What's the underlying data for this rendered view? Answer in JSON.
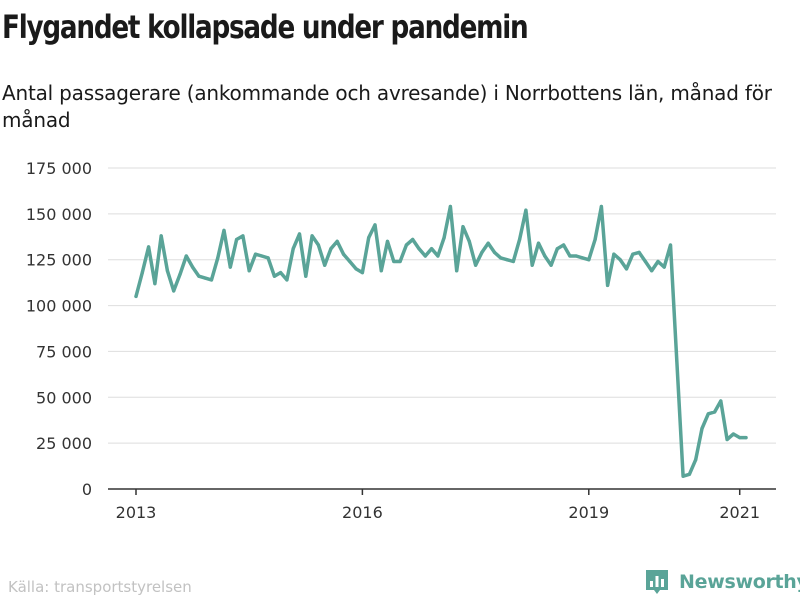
{
  "header": {
    "title": "Flygandet kollapsade under pandemin",
    "subtitle": "Antal passagerare (ankommande och avresande) i Norrbottens län, månad för månad"
  },
  "footer": {
    "source": "Källa: transportstyrelsen",
    "brand": "Newsworthy",
    "brand_icon": "bar-chart-logo-icon"
  },
  "colors": {
    "line": "#5aa498",
    "grid": "#dedede",
    "axis": "#333333",
    "source_text": "#c2c2c2"
  },
  "chart_data": {
    "type": "line",
    "title": "Flygandet kollapsade under pandemin",
    "subtitle": "Antal passagerare (ankommande och avresande) i Norrbottens län, månad för månad",
    "xlabel": "",
    "ylabel": "",
    "ylim": [
      0,
      175000
    ],
    "yticks": [
      0,
      25000,
      50000,
      75000,
      100000,
      125000,
      150000,
      175000
    ],
    "ytick_labels": [
      "0",
      "25 000",
      "50 000",
      "75 000",
      "100 000",
      "125 000",
      "150 000",
      "175 000"
    ],
    "xticks": [
      "2013-01",
      "2016-01",
      "2019-01",
      "2021-01"
    ],
    "xtick_labels": [
      "2013",
      "2016",
      "2019",
      "2021"
    ],
    "grid": true,
    "legend": "none",
    "series": [
      {
        "points": [
          [
            "2013-01",
            105000
          ],
          [
            "2013-02",
            118000
          ],
          [
            "2013-03",
            132000
          ],
          [
            "2013-04",
            112000
          ],
          [
            "2013-05",
            138000
          ],
          [
            "2013-06",
            119000
          ],
          [
            "2013-07",
            108000
          ],
          [
            "2013-08",
            117000
          ],
          [
            "2013-09",
            127000
          ],
          [
            "2013-10",
            121000
          ],
          [
            "2013-11",
            116000
          ],
          [
            "2013-12",
            115000
          ],
          [
            "2014-01",
            114000
          ],
          [
            "2014-02",
            126000
          ],
          [
            "2014-03",
            141000
          ],
          [
            "2014-04",
            121000
          ],
          [
            "2014-05",
            136000
          ],
          [
            "2014-06",
            138000
          ],
          [
            "2014-07",
            119000
          ],
          [
            "2014-08",
            128000
          ],
          [
            "2014-09",
            127000
          ],
          [
            "2014-10",
            126000
          ],
          [
            "2014-11",
            116000
          ],
          [
            "2014-12",
            118000
          ],
          [
            "2015-01",
            114000
          ],
          [
            "2015-02",
            131000
          ],
          [
            "2015-03",
            139000
          ],
          [
            "2015-04",
            116000
          ],
          [
            "2015-05",
            138000
          ],
          [
            "2015-06",
            133000
          ],
          [
            "2015-07",
            122000
          ],
          [
            "2015-08",
            131000
          ],
          [
            "2015-09",
            135000
          ],
          [
            "2015-10",
            128000
          ],
          [
            "2015-11",
            124000
          ],
          [
            "2015-12",
            120000
          ],
          [
            "2016-01",
            118000
          ],
          [
            "2016-02",
            137000
          ],
          [
            "2016-03",
            144000
          ],
          [
            "2016-04",
            119000
          ],
          [
            "2016-05",
            135000
          ],
          [
            "2016-06",
            124000
          ],
          [
            "2016-07",
            124000
          ],
          [
            "2016-08",
            133000
          ],
          [
            "2016-09",
            136000
          ],
          [
            "2016-10",
            131000
          ],
          [
            "2016-11",
            127000
          ],
          [
            "2016-12",
            131000
          ],
          [
            "2017-01",
            127000
          ],
          [
            "2017-02",
            137000
          ],
          [
            "2017-03",
            154000
          ],
          [
            "2017-04",
            119000
          ],
          [
            "2017-05",
            143000
          ],
          [
            "2017-06",
            135000
          ],
          [
            "2017-07",
            122000
          ],
          [
            "2017-08",
            129000
          ],
          [
            "2017-09",
            134000
          ],
          [
            "2017-10",
            129000
          ],
          [
            "2017-11",
            126000
          ],
          [
            "2017-12",
            125000
          ],
          [
            "2018-01",
            124000
          ],
          [
            "2018-02",
            136000
          ],
          [
            "2018-03",
            152000
          ],
          [
            "2018-04",
            122000
          ],
          [
            "2018-05",
            134000
          ],
          [
            "2018-06",
            127000
          ],
          [
            "2018-07",
            122000
          ],
          [
            "2018-08",
            131000
          ],
          [
            "2018-09",
            133000
          ],
          [
            "2018-10",
            127000
          ],
          [
            "2018-11",
            127000
          ],
          [
            "2018-12",
            126000
          ],
          [
            "2019-01",
            125000
          ],
          [
            "2019-02",
            136000
          ],
          [
            "2019-03",
            154000
          ],
          [
            "2019-04",
            111000
          ],
          [
            "2019-05",
            128000
          ],
          [
            "2019-06",
            125000
          ],
          [
            "2019-07",
            120000
          ],
          [
            "2019-08",
            128000
          ],
          [
            "2019-09",
            129000
          ],
          [
            "2019-10",
            124000
          ],
          [
            "2019-11",
            119000
          ],
          [
            "2019-12",
            124000
          ],
          [
            "2020-01",
            121000
          ],
          [
            "2020-02",
            133000
          ],
          [
            "2020-03",
            70000
          ],
          [
            "2020-04",
            7000
          ],
          [
            "2020-05",
            8000
          ],
          [
            "2020-06",
            16000
          ],
          [
            "2020-07",
            33000
          ],
          [
            "2020-08",
            41000
          ],
          [
            "2020-09",
            42000
          ],
          [
            "2020-10",
            48000
          ],
          [
            "2020-11",
            27000
          ],
          [
            "2020-12",
            30000
          ],
          [
            "2021-01",
            28000
          ],
          [
            "2021-02",
            28000
          ]
        ]
      }
    ]
  }
}
